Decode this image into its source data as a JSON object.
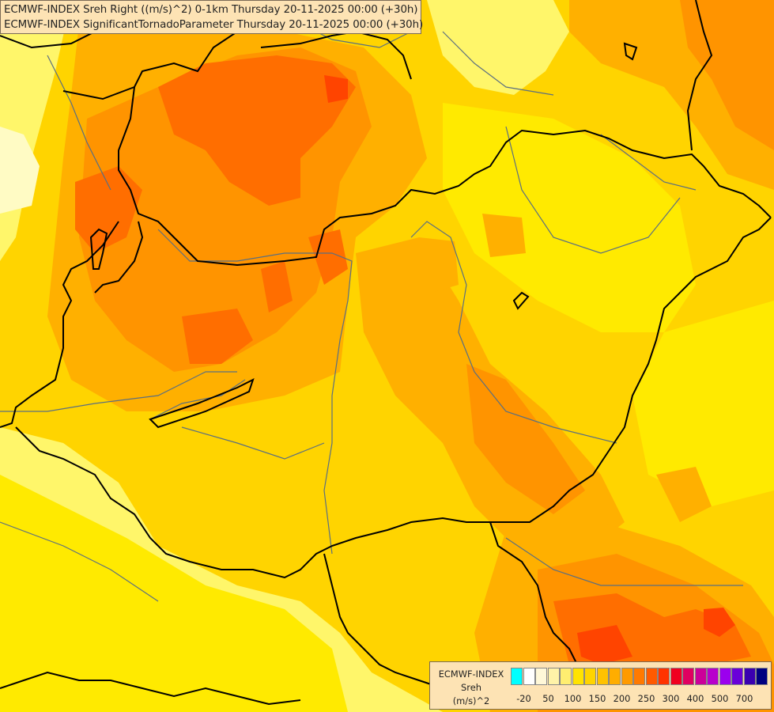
{
  "title": {
    "line1": "ECMWF-INDEX Sreh Right ((m/s)^2) 0-1km Thursday 20-11-2025 00:00 (+30h)",
    "line2": "ECMWF-INDEX SignificantTornadoParameter Thursday 20-11-2025 00:00 (+30h)"
  },
  "legend": {
    "title": "ECMWF-INDEX",
    "variable": "Sreh",
    "unit": "(m/s)^2",
    "colors": [
      "#00ffff",
      "#ffffff",
      "#fff8d8",
      "#fff3a8",
      "#ffee70",
      "#ffe300",
      "#ffd400",
      "#ffc200",
      "#ffad00",
      "#ff9a00",
      "#ff7a00",
      "#ff5a00",
      "#ff3300",
      "#f00020",
      "#e00060",
      "#cc0099",
      "#b800cc",
      "#9b00ee",
      "#6a00d8",
      "#3a00b0",
      "#000080"
    ],
    "ticks": [
      "-20",
      "50",
      "100",
      "150",
      "200",
      "250",
      "300",
      "400",
      "500",
      "700"
    ]
  },
  "field_colors": {
    "pale": "#fffbc4",
    "lightyellow": "#fff66a",
    "yellow": "#ffea00",
    "gold": "#ffd400",
    "amber": "#ffb000",
    "orange": "#ff9400",
    "darkorange": "#ff6e00",
    "red": "#ff4400"
  },
  "line_colors": {
    "country_border": "#000000",
    "rivers_regions": "#5b6f80"
  }
}
